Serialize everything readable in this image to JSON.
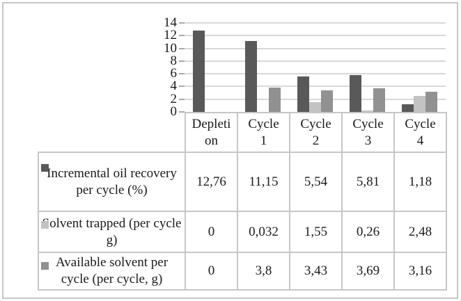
{
  "colors": {
    "series_dark": "#595959",
    "series_light": "#c3c3c3",
    "series_medium": "#919191",
    "gridline": "#d8d8d8",
    "table_border": "#c6c6c6",
    "frame_border": "#c3c6c9",
    "text": "#1a1a1a"
  },
  "chart_data": {
    "type": "bar",
    "categories": [
      "Depletion",
      "Cycle 1",
      "Cycle 2",
      "Cycle 3",
      "Cycle 4"
    ],
    "series": [
      {
        "name": "Incremental oil recovery per cycle (%)",
        "color": "#595959",
        "values": [
          12.76,
          11.15,
          5.54,
          5.81,
          1.18
        ]
      },
      {
        "name": "Solvent trapped (per cycle g)",
        "color": "#c3c3c3",
        "values": [
          0,
          0.032,
          1.55,
          0.26,
          2.48
        ]
      },
      {
        "name": "Available solvent per cycle (per cycle, g)",
        "color": "#919191",
        "values": [
          0,
          3.8,
          3.43,
          3.69,
          3.16
        ]
      }
    ],
    "title": "",
    "xlabel": "",
    "ylabel": "",
    "ylim": [
      0,
      14
    ],
    "yticks": [
      "14",
      "12",
      "10",
      "8",
      "6",
      "4",
      "2",
      "0"
    ],
    "grid": true,
    "legend_position": "table-row-keys"
  },
  "table": {
    "column_headers": [
      "Depletion",
      "Cycle 1",
      "Cycle 2",
      "Cycle 3",
      "Cycle 4"
    ],
    "rows": [
      {
        "label": "Incremental oil recovery per cycle (%)",
        "values": [
          "12,76",
          "11,15",
          "5,54",
          "5,81",
          "1,18"
        ]
      },
      {
        "label": "Solvent trapped (per cycle g)",
        "values": [
          "0",
          "0,032",
          "1,55",
          "0,26",
          "2,48"
        ]
      },
      {
        "label": "Available solvent per cycle (per cycle, g)",
        "values": [
          "0",
          "3,8",
          "3,43",
          "3,69",
          "3,16"
        ]
      }
    ]
  }
}
